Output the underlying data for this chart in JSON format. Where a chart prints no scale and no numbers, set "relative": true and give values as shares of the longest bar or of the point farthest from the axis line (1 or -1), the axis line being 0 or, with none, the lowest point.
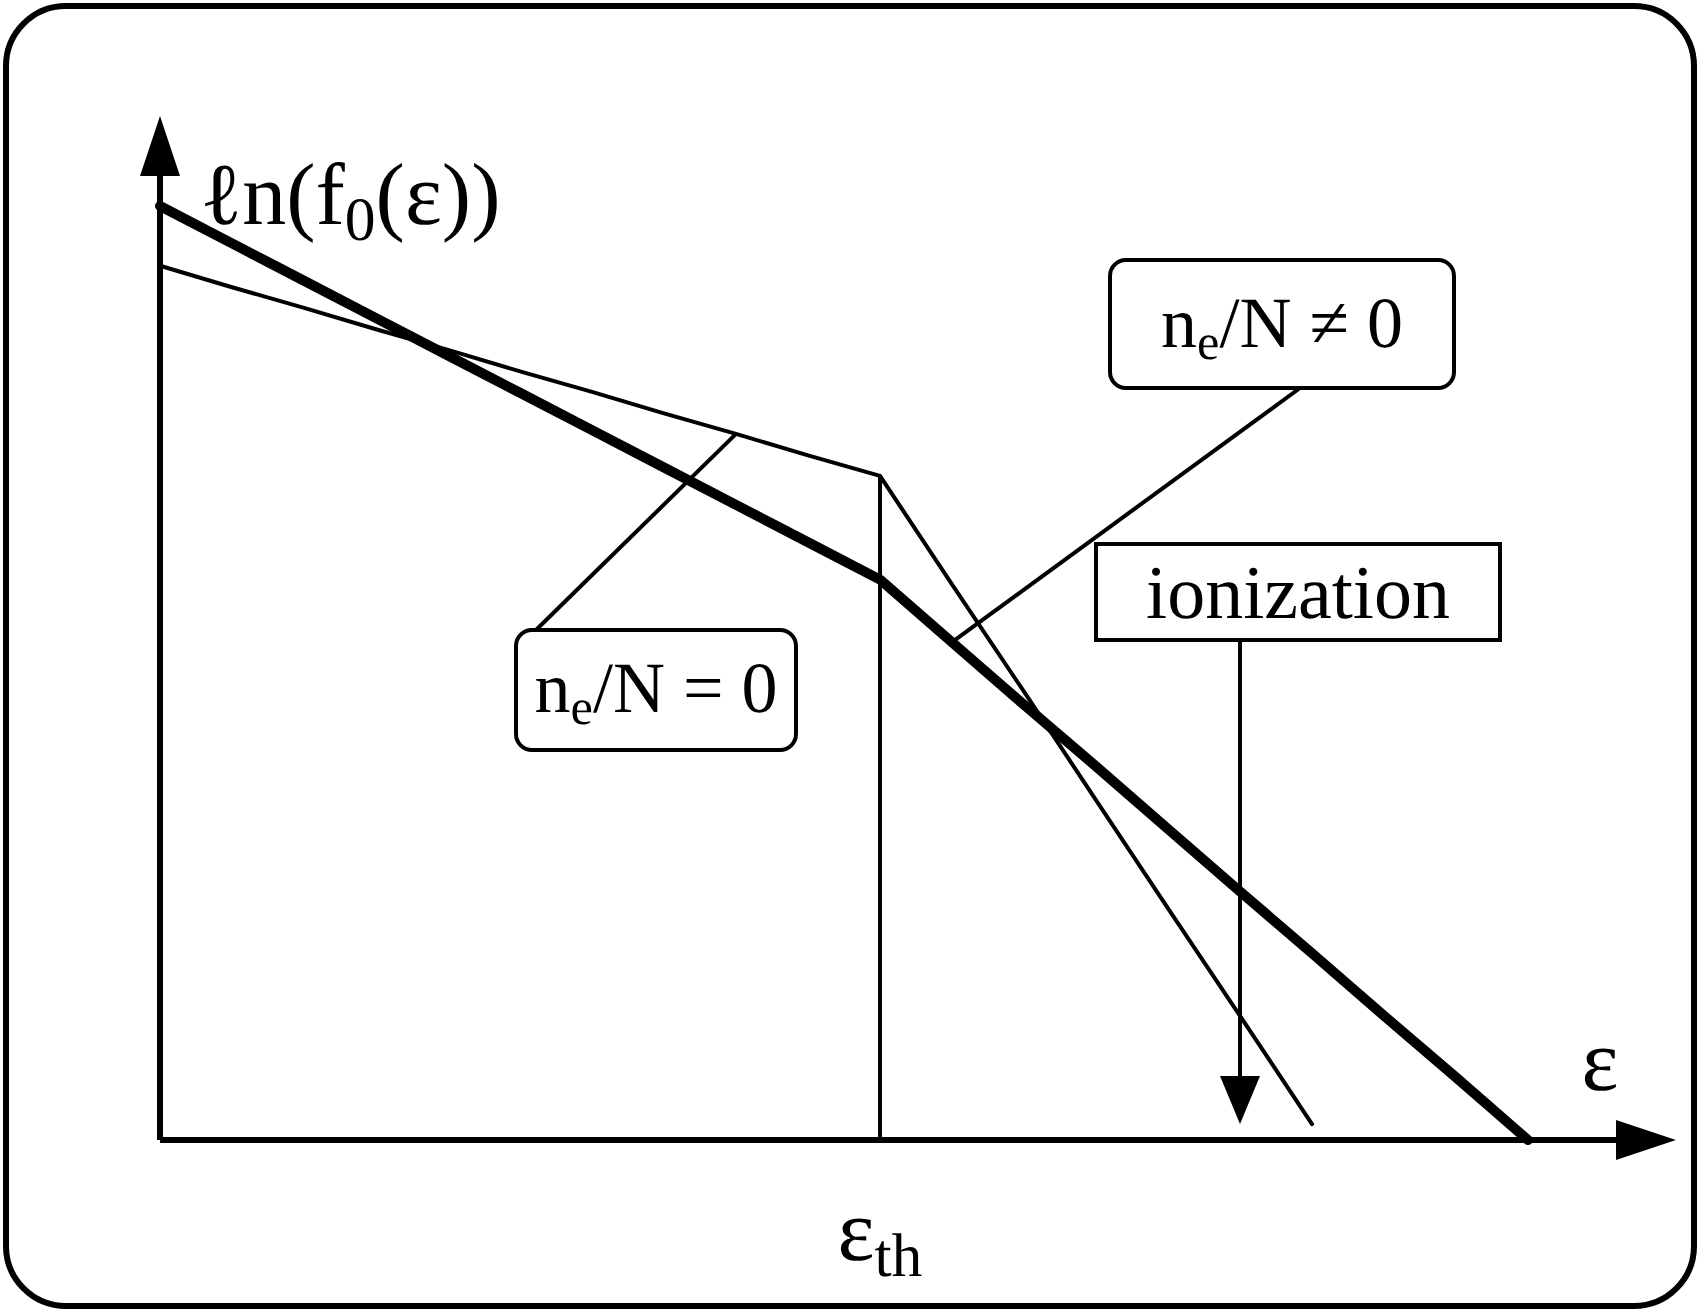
{
  "chart_data": {
    "type": "line",
    "relative": true,
    "xlabel": "ε",
    "ylabel": "ℓn(f$_{0}$(ε))",
    "categories": [
      null,
      null,
      null,
      null,
      null,
      null,
      null,
      null,
      null,
      null,
      null,
      null,
      null,
      null,
      null,
      null,
      null,
      null,
      null,
      null,
      null
    ],
    "series": [
      {
        "name": "n$_{e}$/N = 0",
        "color": "#000000",
        "values": [
          0.936,
          0.913,
          0.891,
          0.868,
          0.846,
          0.823,
          0.801,
          0.778,
          0.756,
          0.733,
          0.711,
          0.595,
          0.48,
          0.364,
          0.248,
          0.133,
          0.017,
          null,
          null,
          null,
          null
        ]
      },
      {
        "name": "n$_{e}$/N ≠ 0",
        "color": "#000000",
        "values": [
          1,
          0.96,
          0.92,
          0.88,
          0.84,
          0.8,
          0.76,
          0.72,
          0.68,
          0.64,
          0.6,
          0.533,
          0.466,
          0.4,
          0.333,
          0.266,
          0.2,
          0.133,
          0.067,
          0,
          null
        ]
      }
    ],
    "annotations": [
      "ε$_{th}$",
      "ionization"
    ],
    "grid": false,
    "legend": false,
    "marker": "none",
    "line_style": "solid"
  }
}
